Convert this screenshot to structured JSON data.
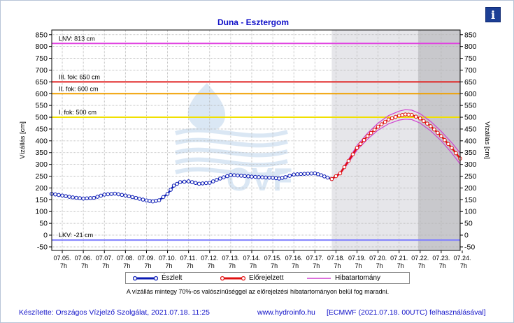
{
  "chart_data": {
    "type": "line",
    "title": "Duna - Esztergom",
    "ylabel_left": "Vízállás [cm]",
    "ylabel_right": "Vízállás [cm]",
    "ylim": [
      -65,
      870
    ],
    "xlim": [
      4.5,
      23.9
    ],
    "yticks": [
      -50,
      0,
      50,
      100,
      150,
      200,
      250,
      300,
      350,
      400,
      450,
      500,
      550,
      600,
      650,
      700,
      750,
      800,
      850
    ],
    "x_tick_labels": [
      {
        "x": 5,
        "date": "07.05.",
        "hour": "7h"
      },
      {
        "x": 6,
        "date": "07.06.",
        "hour": "7h"
      },
      {
        "x": 7,
        "date": "07.07.",
        "hour": "7h"
      },
      {
        "x": 8,
        "date": "07.08.",
        "hour": "7h"
      },
      {
        "x": 9,
        "date": "07.09.",
        "hour": "7h"
      },
      {
        "x": 10,
        "date": "07.10.",
        "hour": "7h"
      },
      {
        "x": 11,
        "date": "07.11.",
        "hour": "7h"
      },
      {
        "x": 12,
        "date": "07.12.",
        "hour": "7h"
      },
      {
        "x": 13,
        "date": "07.13.",
        "hour": "7h"
      },
      {
        "x": 14,
        "date": "07.14.",
        "hour": "7h"
      },
      {
        "x": 15,
        "date": "07.15.",
        "hour": "7h"
      },
      {
        "x": 16,
        "date": "07.16.",
        "hour": "7h"
      },
      {
        "x": 17,
        "date": "07.17.",
        "hour": "7h"
      },
      {
        "x": 18,
        "date": "07.18.",
        "hour": "7h"
      },
      {
        "x": 19,
        "date": "07.19.",
        "hour": "7h"
      },
      {
        "x": 20,
        "date": "07.20.",
        "hour": "7h"
      },
      {
        "x": 21,
        "date": "07.21.",
        "hour": "7h"
      },
      {
        "x": 22,
        "date": "07.22.",
        "hour": "7h"
      },
      {
        "x": 23,
        "date": "07.23.",
        "hour": "7h"
      },
      {
        "x": 24,
        "date": "07.24.",
        "hour": "7h"
      }
    ],
    "shaded_regions": [
      {
        "from": 17.8,
        "to": 21.9,
        "color": "#e6e6ea"
      },
      {
        "from": 21.9,
        "to": 23.9,
        "color": "#c8c8cc"
      }
    ],
    "reference_lines": [
      {
        "label": "LNV: 813 cm",
        "value": 813,
        "color": "#e040e0"
      },
      {
        "label": "III. fok: 650 cm",
        "value": 650,
        "color": "#e02020"
      },
      {
        "label": "II. fok: 600 cm",
        "value": 600,
        "color": "#f0a000"
      },
      {
        "label": "I. fok: 500 cm",
        "value": 500,
        "color": "#f0e000"
      },
      {
        "label": "LKV: -21 cm",
        "value": -21,
        "color": "#8080ff"
      }
    ],
    "series": [
      {
        "name": "Észlelt",
        "color": "#0a1ab4",
        "points": [
          [
            4.5,
            175
          ],
          [
            5.0,
            168
          ],
          [
            5.5,
            160
          ],
          [
            6.0,
            155
          ],
          [
            6.5,
            158
          ],
          [
            7.0,
            172
          ],
          [
            7.5,
            176
          ],
          [
            8.0,
            168
          ],
          [
            8.5,
            158
          ],
          [
            9.0,
            147
          ],
          [
            9.3,
            143
          ],
          [
            9.6,
            148
          ],
          [
            10.0,
            175
          ],
          [
            10.3,
            210
          ],
          [
            10.6,
            225
          ],
          [
            11.0,
            228
          ],
          [
            11.5,
            218
          ],
          [
            12.0,
            222
          ],
          [
            12.5,
            240
          ],
          [
            13.0,
            255
          ],
          [
            13.5,
            252
          ],
          [
            14.0,
            248
          ],
          [
            14.5,
            245
          ],
          [
            15.0,
            243
          ],
          [
            15.3,
            240
          ],
          [
            15.6,
            246
          ],
          [
            16.0,
            257
          ],
          [
            16.5,
            260
          ],
          [
            17.0,
            262
          ],
          [
            17.3,
            254
          ],
          [
            17.6,
            244
          ],
          [
            17.8,
            238
          ]
        ]
      },
      {
        "name": "Előrejelzett",
        "color": "#e01010",
        "points": [
          [
            17.8,
            238
          ],
          [
            18.2,
            262
          ],
          [
            18.6,
            315
          ],
          [
            19.0,
            370
          ],
          [
            19.5,
            420
          ],
          [
            20.0,
            460
          ],
          [
            20.5,
            490
          ],
          [
            21.0,
            507
          ],
          [
            21.3,
            512
          ],
          [
            21.6,
            510
          ],
          [
            22.0,
            495
          ],
          [
            22.5,
            462
          ],
          [
            23.0,
            420
          ],
          [
            23.5,
            370
          ],
          [
            23.9,
            325
          ]
        ]
      },
      {
        "name": "Hibatartomány",
        "color": "#d040d0",
        "upper": [
          [
            17.8,
            240
          ],
          [
            18.2,
            266
          ],
          [
            18.6,
            322
          ],
          [
            19.0,
            380
          ],
          [
            19.5,
            432
          ],
          [
            20.0,
            475
          ],
          [
            20.5,
            507
          ],
          [
            21.0,
            526
          ],
          [
            21.3,
            532
          ],
          [
            21.6,
            530
          ],
          [
            22.0,
            515
          ],
          [
            22.5,
            482
          ],
          [
            23.0,
            440
          ],
          [
            23.5,
            392
          ],
          [
            23.9,
            348
          ]
        ],
        "lower": [
          [
            17.8,
            236
          ],
          [
            18.2,
            258
          ],
          [
            18.6,
            308
          ],
          [
            19.0,
            360
          ],
          [
            19.5,
            407
          ],
          [
            20.0,
            445
          ],
          [
            20.5,
            472
          ],
          [
            21.0,
            488
          ],
          [
            21.3,
            492
          ],
          [
            21.6,
            490
          ],
          [
            22.0,
            475
          ],
          [
            22.5,
            442
          ],
          [
            23.0,
            400
          ],
          [
            23.5,
            348
          ],
          [
            23.9,
            302
          ]
        ]
      }
    ]
  },
  "legend": {
    "observed": "Észlelt",
    "forecast": "Előrejelzett",
    "error_band": "Hibatartomány"
  },
  "note": "A vízállás mintegy 70%-os valószínűséggel az előrejelzési hibatartományon belül fog maradni.",
  "footer": {
    "left": "Készítette: Országos Vízjelző Szolgálat, 2021.07.18. 11:25",
    "middle": "www.hydroinfo.hu",
    "right": "[ECMWF (2021.07.18. 00UTC) felhasználásával]"
  },
  "info_button": {
    "icon": "info-icon",
    "label": "i"
  },
  "watermark": {
    "text": "OVF"
  },
  "colors": {
    "observed": "#0a1ab4",
    "forecast": "#e01010",
    "band": "#d040d0",
    "title": "#1010c8"
  }
}
